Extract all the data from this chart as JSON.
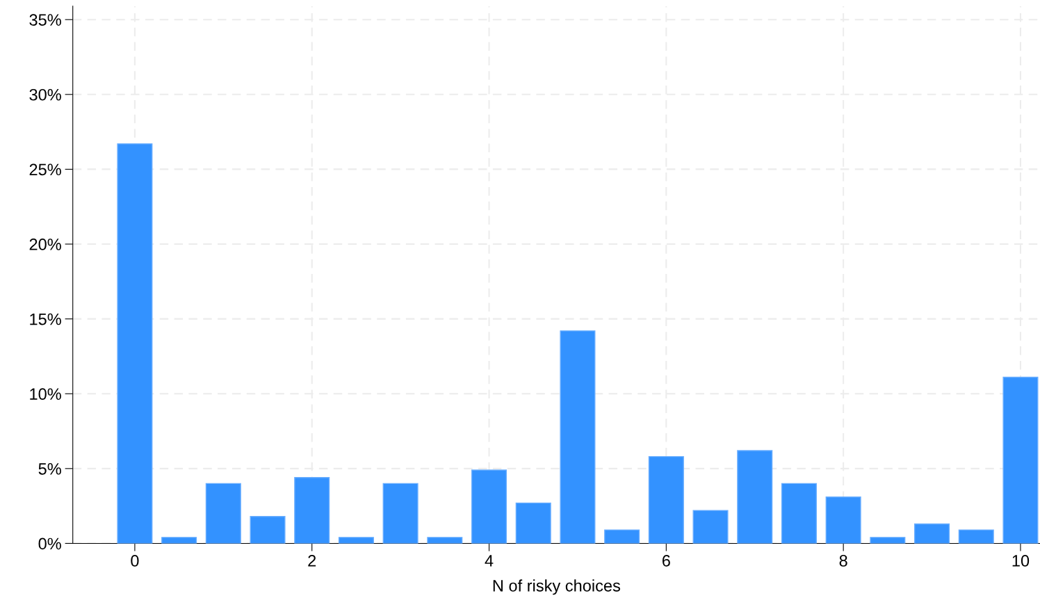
{
  "chart_data": {
    "type": "bar",
    "xlabel": "N of risky choices",
    "x": [
      0,
      0.5,
      1,
      1.5,
      2,
      2.5,
      3,
      3.5,
      4,
      4.5,
      5,
      5.5,
      6,
      6.5,
      7,
      7.5,
      8,
      8.5,
      9,
      9.5,
      10
    ],
    "values": [
      26.7,
      0.4,
      4.0,
      1.8,
      4.4,
      0.4,
      4.0,
      0.4,
      4.9,
      2.7,
      14.2,
      0.9,
      5.8,
      2.2,
      6.2,
      4.0,
      3.1,
      0.4,
      1.3,
      0.9,
      11.1
    ],
    "color": "#3392ff",
    "xlim": [
      -0.7,
      10.22
    ],
    "xticks": [
      0,
      2,
      4,
      6,
      8,
      10
    ],
    "ylim": [
      0,
      35.9
    ],
    "yticks": [
      {
        "value": 0,
        "label": "0%"
      },
      {
        "value": 5,
        "label": "5%"
      },
      {
        "value": 10,
        "label": "10%"
      },
      {
        "value": 15,
        "label": "15%"
      },
      {
        "value": 20,
        "label": "20%"
      },
      {
        "value": 25,
        "label": "25%"
      },
      {
        "value": 30,
        "label": "30%"
      },
      {
        "value": 35,
        "label": "35%"
      }
    ],
    "grid": true
  }
}
